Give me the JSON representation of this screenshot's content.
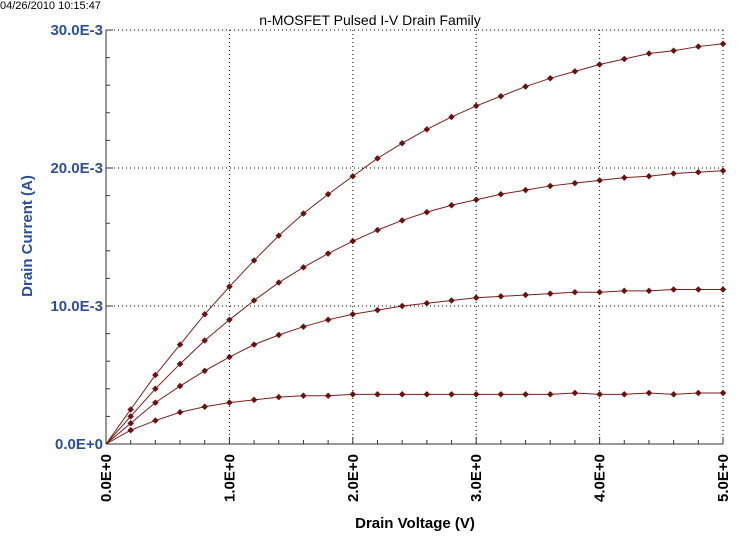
{
  "timestamp": "04/26/2010 10:15:47",
  "chart_data": {
    "type": "line",
    "title": "n-MOSFET Pulsed I-V Drain Family",
    "xlabel": "Drain Voltage (V)",
    "ylabel": "Drain Current (A)",
    "xlim": [
      0,
      5
    ],
    "ylim": [
      0,
      0.03
    ],
    "x_ticks": [
      0,
      1,
      2,
      3,
      4,
      5
    ],
    "x_tick_labels": [
      "0.0E+0",
      "1.0E+0",
      "2.0E+0",
      "3.0E+0",
      "4.0E+0",
      "5.0E+0"
    ],
    "y_ticks": [
      0,
      0.01,
      0.02,
      0.03
    ],
    "y_tick_labels": [
      "0.0E+0",
      "10.0E-3",
      "20.0E-3",
      "30.0E-3"
    ],
    "grid": true,
    "legend": "none",
    "colors": {
      "line": "#7a1f1f",
      "marker": "#6e0f0f",
      "axis_label": "#2b4fa0",
      "tick_label": "#2b4fa0",
      "x_tick_label": "#000000",
      "grid": "#000000"
    },
    "x": [
      0.2,
      0.4,
      0.6,
      0.8,
      1.0,
      1.2,
      1.4,
      1.6,
      1.8,
      2.0,
      2.2,
      2.4,
      2.6,
      2.8,
      3.0,
      3.2,
      3.4,
      3.6,
      3.8,
      4.0,
      4.2,
      4.4,
      4.6,
      4.8,
      5.0
    ],
    "series": [
      {
        "values": [
          0.0025,
          0.005,
          0.0072,
          0.0094,
          0.0114,
          0.0133,
          0.0151,
          0.0167,
          0.0181,
          0.0194,
          0.0207,
          0.0218,
          0.0228,
          0.0237,
          0.0245,
          0.0252,
          0.0259,
          0.0265,
          0.027,
          0.0275,
          0.0279,
          0.0283,
          0.0285,
          0.0288,
          0.029
        ]
      },
      {
        "values": [
          0.002,
          0.004,
          0.0058,
          0.0075,
          0.009,
          0.0104,
          0.0117,
          0.0128,
          0.0138,
          0.0147,
          0.0155,
          0.0162,
          0.0168,
          0.0173,
          0.0177,
          0.0181,
          0.0184,
          0.0187,
          0.0189,
          0.0191,
          0.0193,
          0.0194,
          0.0196,
          0.0197,
          0.0198
        ]
      },
      {
        "values": [
          0.0015,
          0.003,
          0.0042,
          0.0053,
          0.0063,
          0.0072,
          0.0079,
          0.0085,
          0.009,
          0.0094,
          0.0097,
          0.01,
          0.0102,
          0.0104,
          0.0106,
          0.0107,
          0.0108,
          0.0109,
          0.011,
          0.011,
          0.0111,
          0.0111,
          0.0112,
          0.0112,
          0.0112
        ]
      },
      {
        "values": [
          0.001,
          0.0017,
          0.0023,
          0.0027,
          0.003,
          0.0032,
          0.0034,
          0.0035,
          0.0035,
          0.0036,
          0.0036,
          0.0036,
          0.0036,
          0.0036,
          0.0036,
          0.0036,
          0.0036,
          0.0036,
          0.0037,
          0.0036,
          0.0036,
          0.0037,
          0.0036,
          0.0037,
          0.0037
        ]
      }
    ]
  }
}
